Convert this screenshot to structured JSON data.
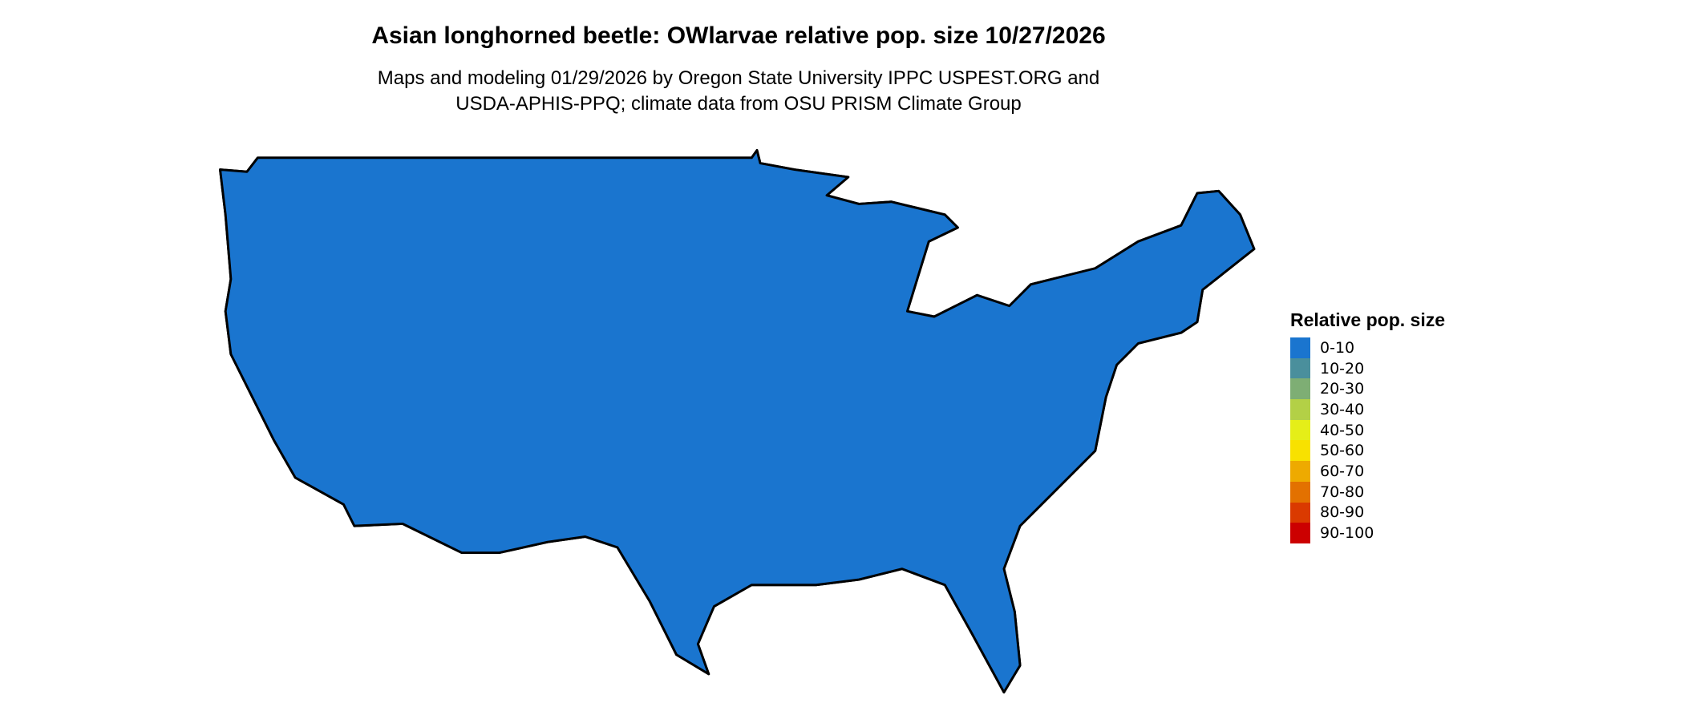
{
  "title": "Asian longhorned beetle: OWlarvae relative pop. size 10/27/2026",
  "subtitle_lines": [
    "Maps and modeling 01/29/2026 by Oregon State University IPPC USPEST.ORG and",
    "USDA-APHIS-PPQ; climate data from OSU PRISM Climate Group"
  ],
  "map": {
    "region": "Contiguous United States",
    "base_color": "#1a75cf",
    "border_color": "#000000"
  },
  "legend": {
    "title": "Relative pop. size",
    "items": [
      {
        "label": "0-10",
        "color": "#1a75cf"
      },
      {
        "label": "10-20",
        "color": "#4a8f9c"
      },
      {
        "label": "20-30",
        "color": "#7eae74"
      },
      {
        "label": "30-40",
        "color": "#b3d046"
      },
      {
        "label": "40-50",
        "color": "#e5ee18"
      },
      {
        "label": "50-60",
        "color": "#f8e100"
      },
      {
        "label": "60-70",
        "color": "#eeaa00"
      },
      {
        "label": "70-80",
        "color": "#e37100"
      },
      {
        "label": "80-90",
        "color": "#da3a00"
      },
      {
        "label": "90-100",
        "color": "#cc0000"
      }
    ]
  }
}
